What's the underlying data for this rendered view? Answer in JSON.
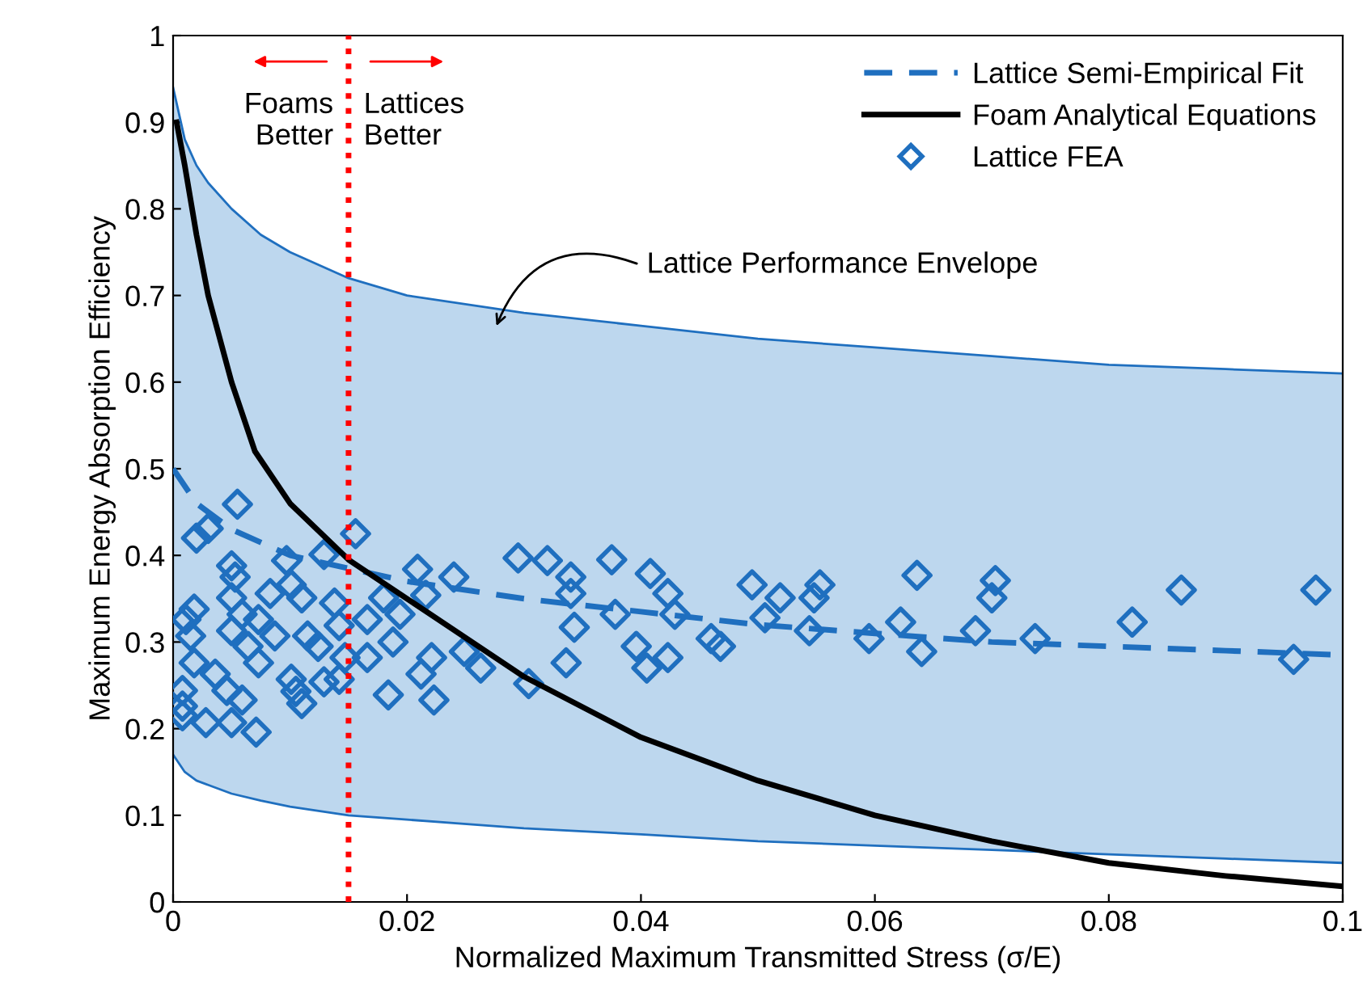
{
  "chart_data": {
    "type": "scatter",
    "xlabel": "Normalized Maximum Transmitted Stress (σ/E)",
    "ylabel": "Maximum Energy Absorption Efficiency",
    "xlim": [
      0,
      0.1
    ],
    "ylim": [
      0,
      1
    ],
    "xticks": [
      0,
      0.02,
      0.04,
      0.06,
      0.08,
      0.1
    ],
    "yticks": [
      0,
      0.1,
      0.2,
      0.3,
      0.4,
      0.5,
      0.6,
      0.7,
      0.8,
      0.9,
      1
    ],
    "grid": false,
    "legend": "top right",
    "series": [
      {
        "type": "area",
        "color": "#bdd7ee",
        "x": [
          0,
          0.001,
          0.002,
          0.003,
          0.005,
          0.0075,
          0.01,
          0.015,
          0.02,
          0.03,
          0.04,
          0.05,
          0.06,
          0.07,
          0.08,
          0.09,
          0.1
        ],
        "values": [
          0.94,
          0.88,
          0.85,
          0.83,
          0.8,
          0.77,
          0.75,
          0.72,
          0.7,
          0.68,
          0.665,
          0.65,
          0.64,
          0.63,
          0.62,
          0.615,
          0.61
        ]
      },
      {
        "type": "area",
        "color": "#ffffff",
        "x": [
          0,
          0.001,
          0.002,
          0.003,
          0.005,
          0.0075,
          0.01,
          0.015,
          0.02,
          0.03,
          0.04,
          0.05,
          0.06,
          0.07,
          0.08,
          0.09,
          0.1
        ],
        "values": [
          0.17,
          0.15,
          0.14,
          0.135,
          0.125,
          0.117,
          0.11,
          0.1,
          0.095,
          0.085,
          0.078,
          0.07,
          0.065,
          0.06,
          0.055,
          0.05,
          0.045
        ]
      },
      {
        "type": "line",
        "name": "Lattice Semi-Empirical Fit",
        "color": "#1f6fbf",
        "line_style": "dashed",
        "marker": "none",
        "x": [
          0,
          0.002,
          0.005,
          0.01,
          0.015,
          0.02,
          0.03,
          0.04,
          0.05,
          0.06,
          0.07,
          0.08,
          0.09,
          0.1
        ],
        "values": [
          0.5,
          0.46,
          0.43,
          0.4,
          0.385,
          0.37,
          0.35,
          0.335,
          0.32,
          0.31,
          0.3,
          0.295,
          0.29,
          0.285
        ]
      },
      {
        "type": "line",
        "name": "Foam Analytical Equations",
        "color": "#000000",
        "line_style": "solid",
        "marker": "none",
        "x": [
          0.0003,
          0.001,
          0.002,
          0.003,
          0.005,
          0.007,
          0.01,
          0.015,
          0.02,
          0.03,
          0.04,
          0.05,
          0.06,
          0.07,
          0.08,
          0.09,
          0.1
        ],
        "values": [
          0.9,
          0.85,
          0.77,
          0.7,
          0.6,
          0.52,
          0.46,
          0.395,
          0.35,
          0.26,
          0.19,
          0.14,
          0.1,
          0.07,
          0.045,
          0.03,
          0.018
        ]
      },
      {
        "name": "Lattice FEA",
        "color": "#1f6fbf",
        "marker": "diamond",
        "x": [
          0.0375,
          0.0408,
          0.034,
          0.034,
          0.0343,
          0.0336,
          0.0378,
          0.0396,
          0.0405,
          0.0423,
          0.0429,
          0.0423,
          0.046,
          0.0468,
          0.0495,
          0.0506,
          0.0519,
          0.0544,
          0.0553,
          0.0548,
          0.0595,
          0.0622,
          0.0636,
          0.064,
          0.0686,
          0.0703,
          0.07,
          0.0737,
          0.082,
          0.0862,
          0.0958,
          0.0977,
          0.0055,
          0.002,
          0.003,
          0.0156,
          0.0097,
          0.0129,
          0.005,
          0.0053,
          0.0209,
          0.024,
          0.0295,
          0.032,
          0.0101,
          0.011,
          0.0083,
          0.005,
          0.0138,
          0.018,
          0.0216,
          0.0018,
          0.0011,
          0.0059,
          0.0073,
          0.005,
          0.0087,
          0.0115,
          0.0142,
          0.0166,
          0.0194,
          0.0015,
          0.0064,
          0.0188,
          0.0124,
          0.0147,
          0.0166,
          0.0221,
          0.0249,
          0.0018,
          0.0036,
          0.0073,
          0.0101,
          0.0129,
          0.0142,
          0.0212,
          0.0263,
          0.0304,
          0.0008,
          0.0046,
          0.0105,
          0.0059,
          0.0184,
          0.0223,
          0.011,
          0.0008,
          0.0028,
          0.005,
          0.0071,
          0.0008
        ],
        "values": [
          0.395,
          0.379,
          0.375,
          0.356,
          0.317,
          0.276,
          0.332,
          0.295,
          0.27,
          0.356,
          0.332,
          0.282,
          0.304,
          0.295,
          0.366,
          0.328,
          0.351,
          0.313,
          0.366,
          0.351,
          0.304,
          0.323,
          0.377,
          0.289,
          0.313,
          0.371,
          0.351,
          0.304,
          0.323,
          0.36,
          0.28,
          0.36,
          0.459,
          0.42,
          0.431,
          0.425,
          0.394,
          0.401,
          0.388,
          0.375,
          0.384,
          0.375,
          0.397,
          0.394,
          0.366,
          0.351,
          0.356,
          0.351,
          0.345,
          0.351,
          0.354,
          0.338,
          0.326,
          0.332,
          0.326,
          0.313,
          0.307,
          0.307,
          0.319,
          0.326,
          0.332,
          0.307,
          0.295,
          0.3,
          0.295,
          0.282,
          0.282,
          0.282,
          0.289,
          0.276,
          0.263,
          0.276,
          0.257,
          0.254,
          0.257,
          0.263,
          0.27,
          0.252,
          0.244,
          0.244,
          0.243,
          0.233,
          0.239,
          0.233,
          0.229,
          0.215,
          0.207,
          0.207,
          0.196,
          0.226
        ]
      }
    ],
    "ref_lines": [
      {
        "axis": "x",
        "value": 0.015,
        "color": "#ff0000",
        "line_style": "dotted"
      }
    ],
    "annotations": [
      "Lattice Performance Envelope",
      "Foams\nBetter",
      "Lattices\nBetter"
    ]
  }
}
